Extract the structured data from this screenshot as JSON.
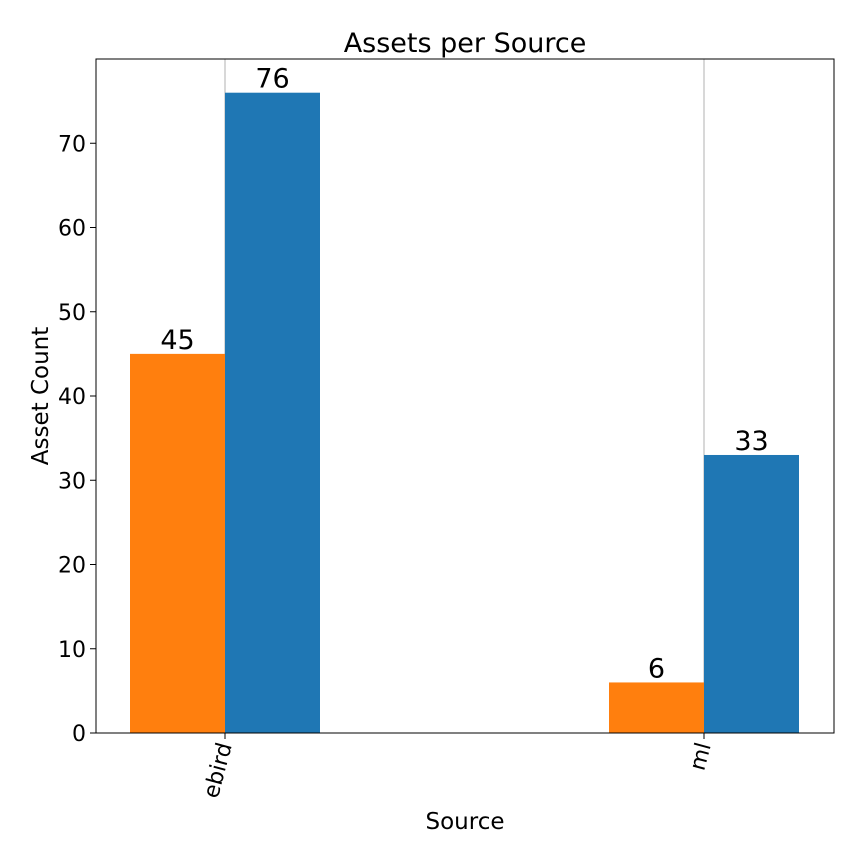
{
  "chart_data": {
    "type": "bar",
    "title": "Assets per Source",
    "xlabel": "Source",
    "ylabel": "Asset Count",
    "categories": [
      "ebird",
      "ml"
    ],
    "series": [
      {
        "values": [
          45,
          6
        ],
        "color": "#ff7f0e"
      },
      {
        "values": [
          76,
          33
        ],
        "color": "#1f77b4"
      }
    ],
    "ylim": [
      0,
      80
    ],
    "yticks": [
      0,
      10,
      20,
      30,
      40,
      50,
      60,
      70
    ],
    "x_tick_rotation_deg": -75,
    "grid": "x-axis vertical lines only",
    "legend": "none"
  }
}
